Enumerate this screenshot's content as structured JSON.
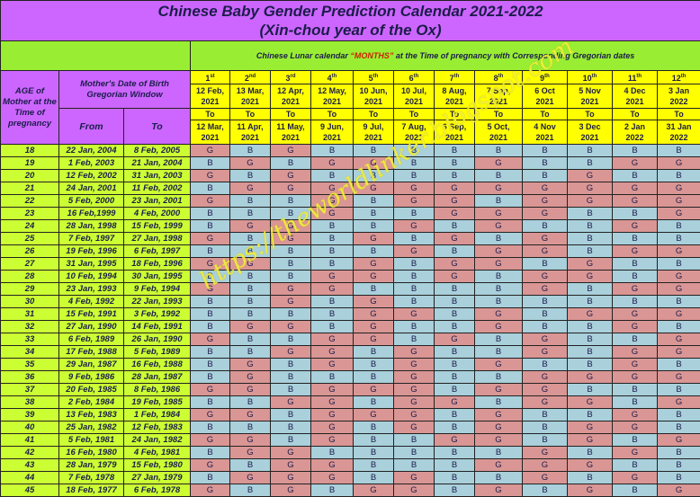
{
  "title": "Chinese Baby Gender Prediction Calendar 2021-2022",
  "subtitle": "(Xin-chou year of the Ox)",
  "lunar_header": {
    "pre": "Chinese Lunar calendar ",
    "highlight": "“MONTHS”",
    "post": " at the Time of pregnancy with Corresponding  Gregorian dates"
  },
  "left_header": {
    "age": "AGE of Mother at the Time of pregnancy",
    "dob": "Mother's Date of Birth Gregorian Window",
    "from": "From",
    "to": "To"
  },
  "to_label": "To",
  "months": [
    {
      "num": "1",
      "sup": "st",
      "from": [
        "12 Feb,",
        "2021"
      ],
      "to": [
        "12 Mar,",
        "2021"
      ]
    },
    {
      "num": "2",
      "sup": "nd",
      "from": [
        "13 Mar,",
        "2021"
      ],
      "to": [
        "11 Apr,",
        "2021"
      ]
    },
    {
      "num": "3",
      "sup": "rd",
      "from": [
        "12 Apr,",
        "2021"
      ],
      "to": [
        "11 May,",
        "2021"
      ]
    },
    {
      "num": "4",
      "sup": "th",
      "from": [
        "12 May,",
        "2021"
      ],
      "to": [
        "9 Jun,",
        "2021"
      ]
    },
    {
      "num": "5",
      "sup": "th",
      "from": [
        "10 Jun,",
        "2021"
      ],
      "to": [
        "9 Jul,",
        "2021"
      ]
    },
    {
      "num": "6",
      "sup": "th",
      "from": [
        "10 Jul,",
        "2021"
      ],
      "to": [
        "7 Aug,",
        "2021"
      ]
    },
    {
      "num": "7",
      "sup": "th",
      "from": [
        "8 Aug,",
        "2021"
      ],
      "to": [
        "6 Sep,",
        "2021"
      ]
    },
    {
      "num": "8",
      "sup": "th",
      "from": [
        "7 Sep,",
        "2021"
      ],
      "to": [
        "5 Oct,",
        "2021"
      ]
    },
    {
      "num": "9",
      "sup": "th",
      "from": [
        "6 Oct",
        "2021"
      ],
      "to": [
        "4 Nov",
        "2021"
      ]
    },
    {
      "num": "10",
      "sup": "th",
      "from": [
        "5 Nov",
        "2021"
      ],
      "to": [
        "3 Dec",
        "2021"
      ]
    },
    {
      "num": "11",
      "sup": "th",
      "from": [
        "4 Dec",
        "2021"
      ],
      "to": [
        "2 Jan",
        "2022"
      ]
    },
    {
      "num": "12",
      "sup": "th",
      "from": [
        "3 Jan",
        "2022"
      ],
      "to": [
        "31 Jan",
        "2022"
      ]
    }
  ],
  "rows": [
    {
      "age": "18",
      "from": "22 Jan, 2004",
      "to": "8 Feb, 2005",
      "g": "GBGBBBBBBBBB"
    },
    {
      "age": "19",
      "from": "1 Feb, 2003",
      "to": "21 Jan, 2004",
      "g": "BGBGGBBGBBGG"
    },
    {
      "age": "20",
      "from": "12 Feb, 2002",
      "to": "31 Jan, 2003",
      "g": "GBGBBBBBBGBB"
    },
    {
      "age": "21",
      "from": "24 Jan, 2001",
      "to": "11 Feb, 2002",
      "g": "BGGGGGGGGGGG"
    },
    {
      "age": "22",
      "from": "5 Feb, 2000",
      "to": "23 Jan, 2001",
      "g": "GBBGBGGBGGGG"
    },
    {
      "age": "23",
      "from": "16 Feb,1999",
      "to": "4 Feb, 2000",
      "g": "BBBGBBGGGBBG"
    },
    {
      "age": "24",
      "from": "28 Jan, 1998",
      "to": "15 Feb, 1999",
      "g": "BGGBBGBGBBGB"
    },
    {
      "age": "25",
      "from": "7 Feb, 1997",
      "to": "27 Jan, 1998",
      "g": "GBGBGBGBGBBB"
    },
    {
      "age": "26",
      "from": "19 Feb, 1996",
      "to": "6 Feb, 1997",
      "g": "BBBBBGBGGBGG"
    },
    {
      "age": "27",
      "from": "31 Jan, 1995",
      "to": "18 Feb, 1996",
      "g": "GGBBGBGGBGBB"
    },
    {
      "age": "28",
      "from": "10 Feb, 1994",
      "to": "30 Jan, 1995",
      "g": "BBBGGBGBGGBG"
    },
    {
      "age": "29",
      "from": "23 Jan, 1993",
      "to": "9 Feb, 1994",
      "g": "GBGGBBBBGBGG"
    },
    {
      "age": "30",
      "from": "4 Feb, 1992",
      "to": "22 Jan, 1993",
      "g": "BBGBGBBBBBBB"
    },
    {
      "age": "31",
      "from": "15 Feb, 1991",
      "to": "3 Feb, 1992",
      "g": "BBBBGGBGBGGG"
    },
    {
      "age": "32",
      "from": "27 Jan, 1990",
      "to": "14 Feb, 1991",
      "g": "BGGBGBBGBBGB"
    },
    {
      "age": "33",
      "from": "6 Feb, 1989",
      "to": "26 Jan, 1990",
      "g": "GBBGGBGBGBBG"
    },
    {
      "age": "34",
      "from": "17 Feb, 1988",
      "to": "5 Feb, 1989",
      "g": "BBGGBGBBGBGG"
    },
    {
      "age": "35",
      "from": "29 Jan, 1987",
      "to": "16 Feb, 1988",
      "g": "BGBGBGBGBBGB"
    },
    {
      "age": "36",
      "from": "9 Feb, 1986",
      "to": "28 Jan, 1987",
      "g": "BGBBBGBBGGGG"
    },
    {
      "age": "37",
      "from": "20 Feb, 1985",
      "to": "8 Feb, 1986",
      "g": "GGBGGGBGGBBB"
    },
    {
      "age": "38",
      "from": "2 Feb, 1984",
      "to": "19 Feb, 1985",
      "g": "BBGGBGGBGGBG"
    },
    {
      "age": "39",
      "from": "13 Feb, 1983",
      "to": "1 Feb, 1984",
      "g": "GGBGGGBGBBGB"
    },
    {
      "age": "40",
      "from": "25 Jan, 1982",
      "to": "12 Feb, 1983",
      "g": "BBBGBGBGBGGB"
    },
    {
      "age": "41",
      "from": "5 Feb, 1981",
      "to": "24 Jan, 1982",
      "g": "GGBGBBGGBGBG"
    },
    {
      "age": "42",
      "from": "16 Feb, 1980",
      "to": "4 Feb, 1981",
      "g": "BGGBBBBBGBGB"
    },
    {
      "age": "43",
      "from": "28 Jan, 1979",
      "to": "15 Feb, 1980",
      "g": "GBGGBBBGGGBB"
    },
    {
      "age": "44",
      "from": "7 Feb, 1978",
      "to": "27 Jan, 1979",
      "g": "BGGGBGBBGBGB"
    },
    {
      "age": "45",
      "from": "18 Feb, 1977",
      "to": "6 Feb, 1978",
      "g": "GBGBGGBGBGBG"
    }
  ],
  "watermark": "https://theworldlinker.blogspot.com",
  "colors": {
    "girl": "#da9694",
    "boy": "#a9d0db",
    "title_bg": "#cc66ff",
    "header_green": "#99ee33",
    "date_yellow": "#ffff00",
    "age_lime": "#ccff33",
    "months_highlight": "#cc2200"
  }
}
